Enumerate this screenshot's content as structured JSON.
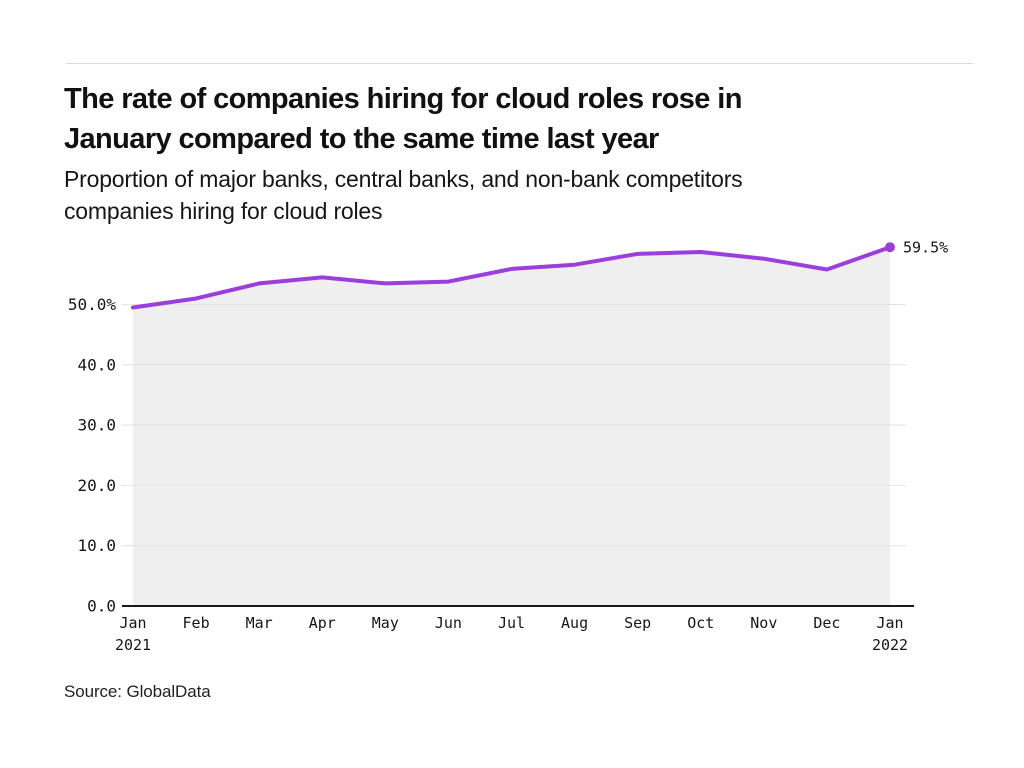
{
  "header": {
    "title_lines": [
      "The rate of companies hiring for cloud roles rose in",
      "January compared to the same time last year"
    ],
    "subtitle_lines": [
      "Proportion of major banks, central banks, and non-bank competitors",
      "companies hiring for cloud roles"
    ]
  },
  "footer": {
    "source": "Source: GlobalData"
  },
  "chart_data": {
    "type": "area",
    "title": "The rate of companies hiring for cloud roles rose in January compared to the same time last year",
    "subtitle": "Proportion of major banks, central banks, and non-bank competitors companies hiring for cloud roles",
    "categories": [
      "Jan 2021",
      "Feb",
      "Mar",
      "Apr",
      "May",
      "Jun",
      "Jul",
      "Aug",
      "Sep",
      "Oct",
      "Nov",
      "Dec",
      "Jan 2022"
    ],
    "values": [
      49.5,
      51.0,
      53.5,
      54.5,
      53.5,
      53.8,
      55.9,
      56.6,
      58.4,
      58.7,
      57.6,
      55.8,
      59.5
    ],
    "end_label": "59.5%",
    "xlabel": "",
    "ylabel": "",
    "ylim": [
      0,
      62
    ],
    "yticks": [
      {
        "value": 0,
        "label": "0.0"
      },
      {
        "value": 10,
        "label": "10.0"
      },
      {
        "value": 20,
        "label": "20.0"
      },
      {
        "value": 30,
        "label": "30.0"
      },
      {
        "value": 40,
        "label": "40.0"
      },
      {
        "value": 50,
        "label": "50.0%"
      }
    ],
    "grid": "horizontal",
    "legend": "none",
    "colors": {
      "line": "#9a3fdb",
      "marker": "#9a3fdb",
      "area_fill": "#efefef",
      "gridline": "#e2e2e2",
      "axis": "#1a1a1a",
      "tick_text": "#161616",
      "end_label_text": "#161616"
    }
  }
}
